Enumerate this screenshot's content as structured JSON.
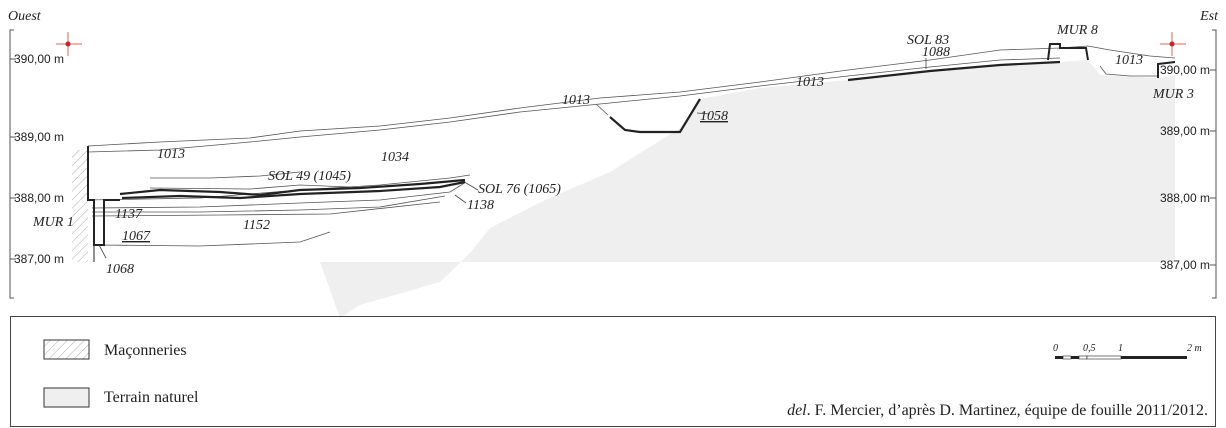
{
  "orientation": {
    "west": "Ouest",
    "east": "Est"
  },
  "elevations": {
    "left": [
      "390,00 m",
      "389,00 m",
      "388,00 m",
      "387,00 m"
    ],
    "right": [
      "390,00 m",
      "389,00 m",
      "388,00 m",
      "387,00 m"
    ]
  },
  "units": {
    "mur_1": "MUR 1",
    "mur_3": "MUR 3",
    "mur_8": "MUR 8",
    "sol_83": "SOL 83",
    "u1088": "1088",
    "u1013_a": "1013",
    "u1013_b": "1013",
    "u1013_c": "1013",
    "u1013_d": "1013",
    "u1058": "1058",
    "u1034": "1034",
    "sol_49": "SOL 49 (1045)",
    "sol_76": "SOL 76 (1065)",
    "u1138": "1138",
    "u1137": "1137",
    "u1152": "1152",
    "u1067": "1067",
    "u1068": "1068"
  },
  "legend": {
    "masonry": "Maçonneries",
    "natural": "Terrain naturel",
    "colors": {
      "natural": "#efefef",
      "masonry_hatch": "#aaaaaa"
    }
  },
  "scale_bar": {
    "ticks": [
      "0",
      "0,5",
      "1",
      "2 m"
    ]
  },
  "credit": {
    "prefix": "del",
    "text": ". F. Mercier, d’après D. Martinez, équipe de fouille 2011/2012."
  }
}
